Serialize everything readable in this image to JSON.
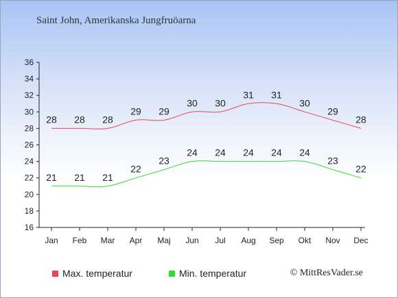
{
  "title": "Saint John, Amerikanska Jungfruöarna",
  "copyright": "© MittResVader.se",
  "chart_data": {
    "type": "line",
    "categories": [
      "Jan",
      "Feb",
      "Mar",
      "Apr",
      "Maj",
      "Jun",
      "Jul",
      "Aug",
      "Sep",
      "Okt",
      "Nov",
      "Dec"
    ],
    "ylim": [
      16,
      36
    ],
    "yticks": [
      16,
      18,
      20,
      22,
      24,
      26,
      28,
      30,
      32,
      34,
      36
    ],
    "grid": false,
    "legend": "bottom",
    "series": [
      {
        "name": "Max. temperatur",
        "color": "#e8474e",
        "values": [
          28,
          28,
          28,
          29,
          29,
          30,
          30,
          31,
          31,
          30,
          29,
          28
        ]
      },
      {
        "name": "Min. temperatur",
        "color": "#33dd33",
        "values": [
          21,
          21,
          21,
          22,
          23,
          24,
          24,
          24,
          24,
          24,
          23,
          22
        ]
      }
    ]
  }
}
